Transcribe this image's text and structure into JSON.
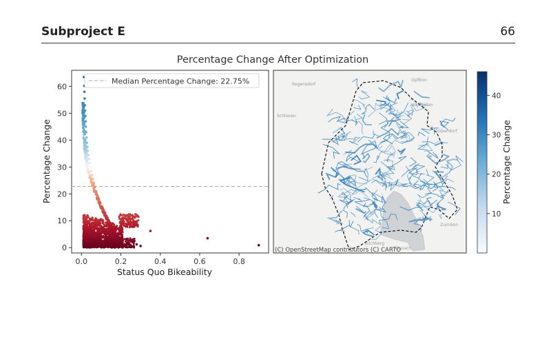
{
  "header": {
    "section": "Subproject E",
    "page_number": "66"
  },
  "figure": {
    "suptitle": "Percentage Change After Optimization",
    "map_attribution": "(C) OpenStreetMap contributors (C) CARTO",
    "map_place_labels": [
      "Regensdorf",
      "Opfikon",
      "Wallisellen",
      "Dübendorf",
      "Schlieren",
      "Zollikon",
      "Kilchberg",
      "Zumikon",
      "Küsnacht"
    ],
    "colorbar": {
      "label": "Percentage Change",
      "ticks": [
        10,
        20,
        30,
        40
      ],
      "range": [
        0,
        46
      ],
      "colormap": "Blues",
      "colors": [
        "#f7fbff",
        "#c6dbef",
        "#6baed6",
        "#2171b5",
        "#08306b"
      ]
    },
    "line_color": "#2f7fc1",
    "boundary_color": "#111111"
  },
  "chart_data": [
    {
      "type": "scatter",
      "title": "",
      "xlabel": "Status Quo Bikeability",
      "ylabel": "Percentage Change",
      "xlim": [
        -0.05,
        0.95
      ],
      "ylim": [
        -2,
        66
      ],
      "xticks": [
        0.0,
        0.2,
        0.4,
        0.6,
        0.8
      ],
      "xtick_labels": [
        "0.0",
        "0.2",
        "0.4",
        "0.6",
        "0.8"
      ],
      "yticks": [
        0,
        10,
        20,
        30,
        40,
        50,
        60
      ],
      "ytick_labels": [
        "0",
        "10",
        "20",
        "30",
        "40",
        "50",
        "60"
      ],
      "grid": false,
      "colormap": "RdBu (red = low change, blue = high change)",
      "hline": {
        "y": 22.75,
        "style": "dashed",
        "color": "#aaaaaa",
        "label": "Median Percentage Change: 22.75%"
      },
      "legend": {
        "location": "upper right"
      },
      "series": [
        {
          "points": [
            [
              0.012,
              63.5
            ],
            [
              0.014,
              60.2
            ],
            [
              0.015,
              58.0
            ],
            [
              0.016,
              55.5
            ],
            [
              0.017,
              53.0
            ],
            [
              0.018,
              51.0
            ],
            [
              0.02,
              49.0
            ],
            [
              0.021,
              47.0
            ],
            [
              0.022,
              45.0
            ],
            [
              0.024,
              43.0
            ],
            [
              0.026,
              41.0
            ],
            [
              0.028,
              39.0
            ],
            [
              0.03,
              37.5
            ],
            [
              0.032,
              36.0
            ],
            [
              0.035,
              34.5
            ],
            [
              0.038,
              33.0
            ],
            [
              0.041,
              31.5
            ],
            [
              0.045,
              30.0
            ],
            [
              0.049,
              28.5
            ],
            [
              0.053,
              27.0
            ],
            [
              0.058,
              25.5
            ],
            [
              0.063,
              24.0
            ],
            [
              0.068,
              22.5
            ],
            [
              0.074,
              21.0
            ],
            [
              0.08,
              19.5
            ],
            [
              0.088,
              18.0
            ],
            [
              0.095,
              16.5
            ],
            [
              0.103,
              15.0
            ],
            [
              0.11,
              13.5
            ],
            [
              0.12,
              12.0
            ],
            [
              0.13,
              10.5
            ],
            [
              0.14,
              9.0
            ],
            [
              0.15,
              7.5
            ],
            [
              0.16,
              6.0
            ],
            [
              0.2,
              10.5
            ],
            [
              0.22,
              11.0
            ],
            [
              0.25,
              9.5
            ],
            [
              0.27,
              8.5
            ],
            [
              0.23,
              12.0
            ],
            [
              0.24,
              1.8
            ],
            [
              0.2,
              2.5
            ],
            [
              0.28,
              1.2
            ],
            [
              0.3,
              0.6
            ],
            [
              0.18,
              3.0
            ],
            [
              0.35,
              6.2
            ],
            [
              0.64,
              3.5
            ],
            [
              0.9,
              0.9
            ]
          ]
        }
      ]
    }
  ]
}
